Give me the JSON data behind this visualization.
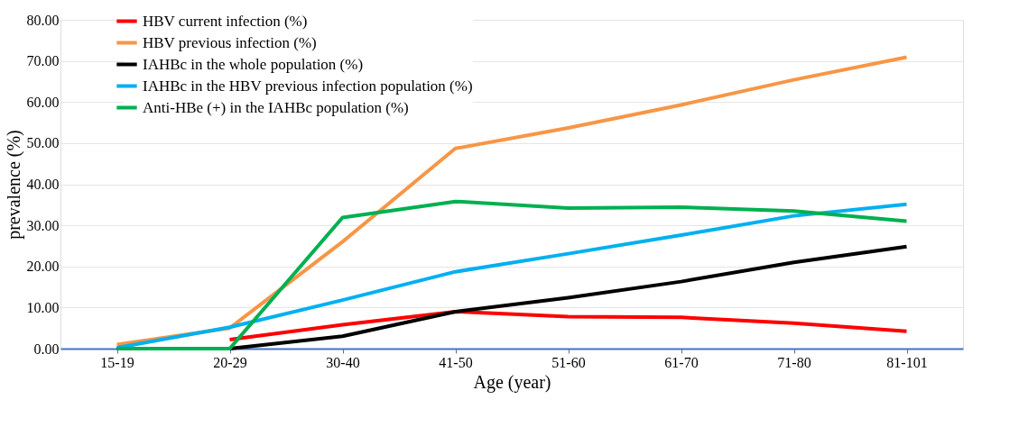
{
  "chart_data": {
    "type": "line",
    "xlabel": "Age (year)",
    "ylabel": "prevalence (%)",
    "categories": [
      "15-19",
      "20-29",
      "30-40",
      "41-50",
      "51-60",
      "61-70",
      "71-80",
      "81-101"
    ],
    "series": [
      {
        "name": "HBV current infection (%)",
        "color": "#ff0000",
        "values": [
          null,
          2.2,
          5.8,
          9.0,
          7.8,
          7.6,
          6.2,
          4.2
        ]
      },
      {
        "name": "HBV previous infection (%)",
        "color": "#f79646",
        "values": [
          1.0,
          5.0,
          26.0,
          48.7,
          53.7,
          59.3,
          65.4,
          70.9
        ]
      },
      {
        "name": "IAHBc in the whole population (%)",
        "color": "#000000",
        "values": [
          0,
          0,
          3.0,
          9.0,
          12.4,
          16.3,
          21.0,
          24.8
        ]
      },
      {
        "name": "IAHBc in the HBV previous infection population (%)",
        "color": "#00b0f0",
        "values": [
          0.2,
          5.2,
          11.8,
          18.7,
          23.1,
          27.6,
          32.3,
          35.1
        ]
      },
      {
        "name": "Anti-HBe (+) in the IAHBc population (%)",
        "color": "#00b050",
        "values": [
          0,
          0,
          31.9,
          35.8,
          34.2,
          34.4,
          33.5,
          31.0
        ]
      }
    ],
    "ylim": [
      0,
      80
    ],
    "yticks": [
      {
        "value": 0,
        "label": "0.00"
      },
      {
        "value": 10,
        "label": "10.00"
      },
      {
        "value": 20,
        "label": "20.00"
      },
      {
        "value": 30,
        "label": "30.00"
      },
      {
        "value": 40,
        "label": "40.00"
      },
      {
        "value": 50,
        "label": "50.00"
      },
      {
        "value": 60,
        "label": "60.00"
      },
      {
        "value": 70,
        "label": "70.00"
      },
      {
        "value": 80,
        "label": "80.00"
      }
    ],
    "grid": "y",
    "legend": "top left",
    "marker": "none",
    "line_style": "solid"
  }
}
